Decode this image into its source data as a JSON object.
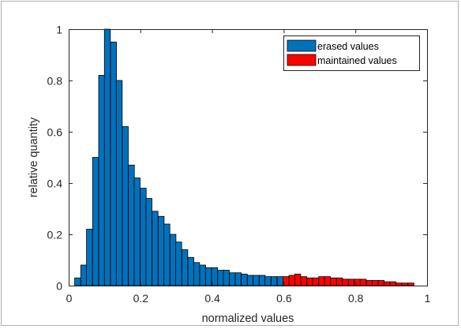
{
  "chart_data": {
    "type": "bar",
    "title": "",
    "xlabel": "normalized values",
    "ylabel": "relative quantity",
    "xlim": [
      0,
      1
    ],
    "ylim": [
      0,
      1
    ],
    "grid": false,
    "legend_position": "top-right",
    "xticks": [
      {
        "value": 0,
        "label": "0"
      },
      {
        "value": 0.2,
        "label": "0.2"
      },
      {
        "value": 0.4,
        "label": "0.4"
      },
      {
        "value": 0.6,
        "label": "0.6"
      },
      {
        "value": 0.8,
        "label": "0.8"
      },
      {
        "value": 1,
        "label": "1"
      }
    ],
    "yticks": [
      {
        "value": 0,
        "label": "0"
      },
      {
        "value": 0.2,
        "label": "0.2"
      },
      {
        "value": 0.4,
        "label": "0.4"
      },
      {
        "value": 0.6,
        "label": "0.6"
      },
      {
        "value": 0.8,
        "label": "0.8"
      },
      {
        "value": 1,
        "label": "1"
      }
    ],
    "bin_width": 0.0166,
    "series": [
      {
        "name": "erased values",
        "color": "#0072BD",
        "x": [
          0.025,
          0.042,
          0.058,
          0.075,
          0.092,
          0.108,
          0.125,
          0.141,
          0.158,
          0.175,
          0.191,
          0.208,
          0.224,
          0.241,
          0.258,
          0.274,
          0.291,
          0.307,
          0.324,
          0.341,
          0.357,
          0.374,
          0.39,
          0.407,
          0.424,
          0.44,
          0.457,
          0.473,
          0.49,
          0.507,
          0.523,
          0.54,
          0.556,
          0.573,
          0.59
        ],
        "values": [
          0.03,
          0.08,
          0.22,
          0.5,
          0.82,
          1.0,
          0.95,
          0.8,
          0.62,
          0.47,
          0.42,
          0.38,
          0.34,
          0.29,
          0.27,
          0.24,
          0.2,
          0.17,
          0.14,
          0.11,
          0.09,
          0.08,
          0.07,
          0.07,
          0.06,
          0.06,
          0.05,
          0.05,
          0.045,
          0.04,
          0.04,
          0.04,
          0.035,
          0.035,
          0.035
        ]
      },
      {
        "name": "maintained values",
        "color": "#FF0000",
        "x": [
          0.606,
          0.623,
          0.639,
          0.656,
          0.673,
          0.689,
          0.706,
          0.722,
          0.739,
          0.756,
          0.772,
          0.789,
          0.805,
          0.822,
          0.839,
          0.855,
          0.872,
          0.888,
          0.905,
          0.922,
          0.938,
          0.955
        ],
        "values": [
          0.035,
          0.04,
          0.045,
          0.035,
          0.03,
          0.03,
          0.035,
          0.035,
          0.03,
          0.03,
          0.025,
          0.025,
          0.025,
          0.025,
          0.02,
          0.02,
          0.02,
          0.015,
          0.015,
          0.01,
          0.01,
          0.01
        ]
      }
    ]
  }
}
